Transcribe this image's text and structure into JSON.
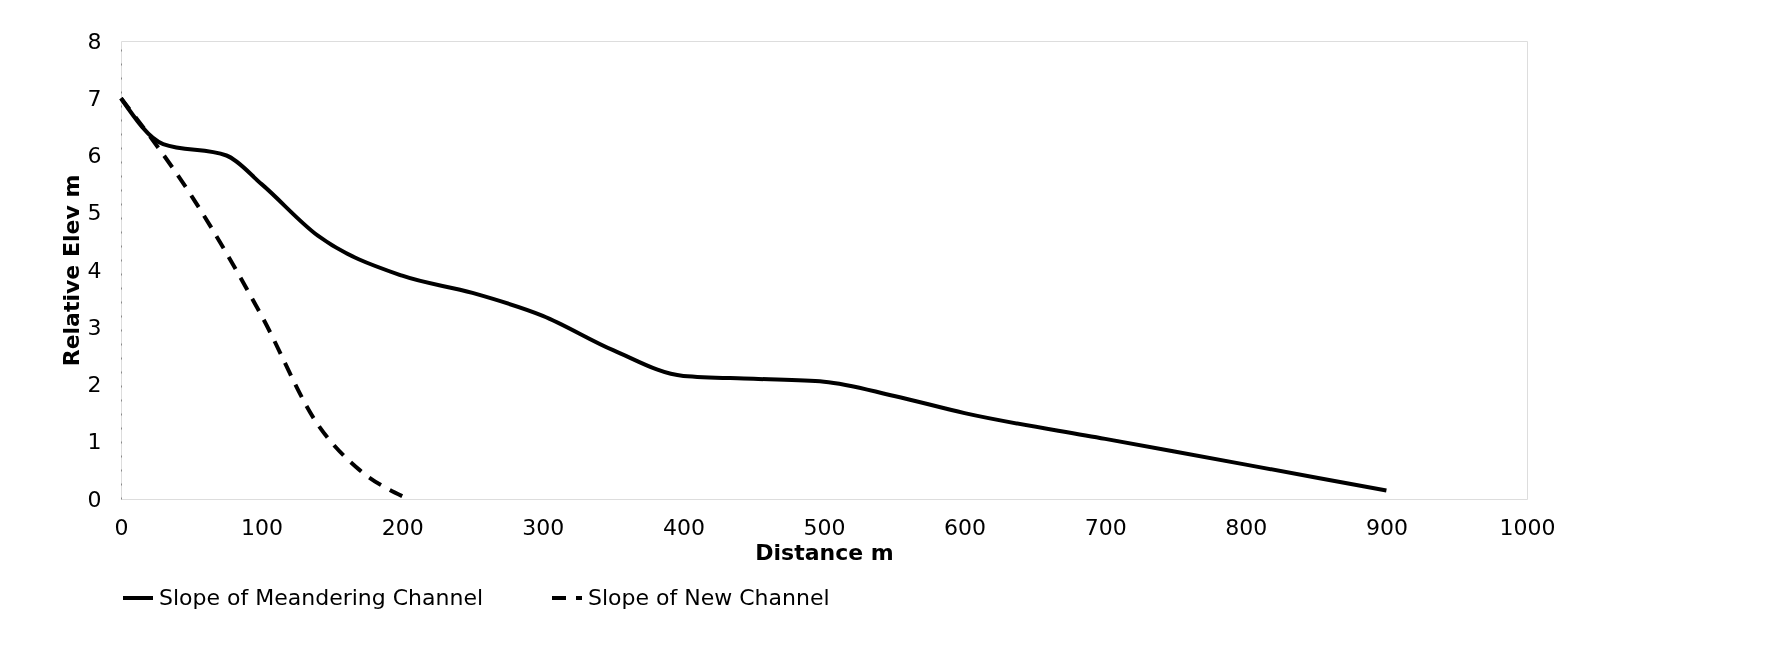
{
  "chart_data": {
    "type": "line",
    "xlabel": "Distance m",
    "ylabel": "Relative Elev m",
    "xlim": [
      0,
      1000
    ],
    "xticks": [
      0,
      100,
      200,
      300,
      400,
      500,
      600,
      700,
      800,
      900,
      1000
    ],
    "ylim": [
      0,
      8
    ],
    "yticks": [
      0,
      1,
      2,
      3,
      4,
      5,
      6,
      7,
      8
    ],
    "grid": false,
    "legend": "bottom",
    "marker": "none",
    "series": [
      {
        "name": "Slope of Meandering Channel",
        "color": "#000000",
        "line_style": "solid",
        "x": [
          0,
          30,
          75,
          100,
          140,
          200,
          250,
          300,
          350,
          400,
          450,
          500,
          550,
          600,
          700,
          800,
          900
        ],
        "values": [
          7,
          6.2,
          6.0,
          5.5,
          4.6,
          3.9,
          3.6,
          3.2,
          2.6,
          2.15,
          2.1,
          2.05,
          1.8,
          1.5,
          1.05,
          0.6,
          0.15
        ]
      },
      {
        "name": "Slope of New Channel",
        "color": "#000000",
        "line_style": "dashed",
        "x": [
          0,
          50,
          100,
          140,
          170,
          200
        ],
        "values": [
          7,
          5.3,
          3.2,
          1.3,
          0.5,
          0.05
        ]
      }
    ]
  }
}
